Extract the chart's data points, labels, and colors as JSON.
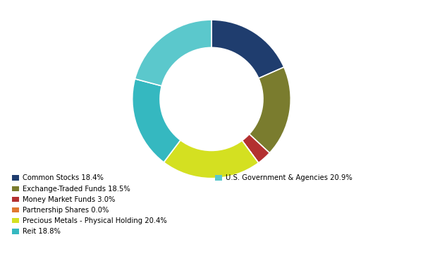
{
  "labels": [
    "Common Stocks 18.4%",
    "Exchange-Traded Funds 18.5%",
    "Money Market Funds 3.0%",
    "Partnership Shares 0.0%",
    "Precious Metals - Physical Holding 20.4%",
    "Reit 18.8%",
    "U.S. Government & Agencies 20.9%"
  ],
  "values": [
    18.4,
    18.5,
    3.0,
    0.001,
    20.4,
    18.8,
    20.9
  ],
  "colors": [
    "#1f3d6e",
    "#7a7c2e",
    "#b33030",
    "#e07830",
    "#d4e021",
    "#35b8c0",
    "#5bc8cc"
  ],
  "legend_col1": [
    "Common Stocks 18.4%",
    "Exchange-Traded Funds 18.5%",
    "Money Market Funds 3.0%",
    "Partnership Shares 0.0%",
    "Precious Metals - Physical Holding 20.4%",
    "Reit 18.8%"
  ],
  "legend_col2": [
    "U.S. Government & Agencies 20.9%"
  ],
  "background_color": "#ffffff",
  "donut_width": 0.35,
  "startangle": 90
}
